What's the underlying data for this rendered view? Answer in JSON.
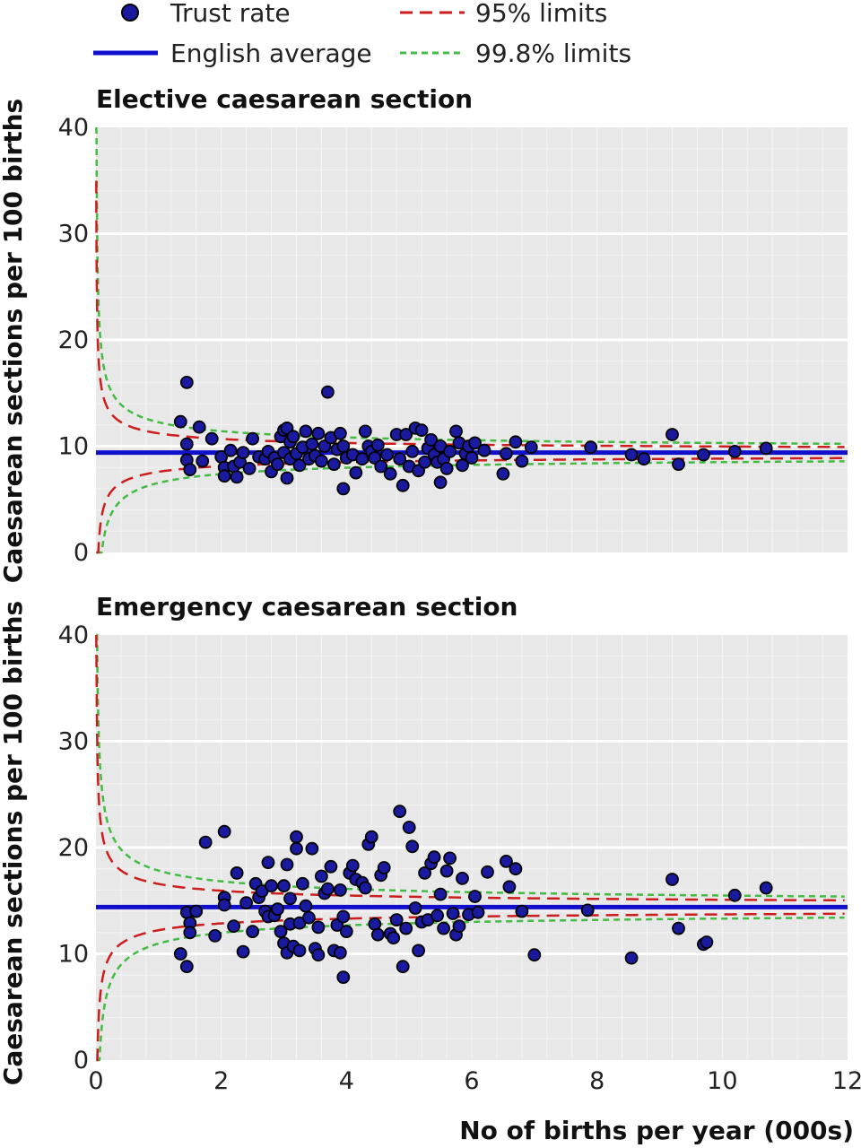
{
  "legend": {
    "trust_rate": "Trust rate",
    "english_average": "English average",
    "limits95": "95% limits",
    "limits998": "99.8% limits"
  },
  "colors": {
    "plot_background": "#e8e8e8",
    "point_fill": "#1a1aa0",
    "average_line": "#1010cc",
    "limits95": "#cc1e1e",
    "limits998": "#44bb44"
  },
  "axes": {
    "xlabel": "No of births per year (000s)",
    "ylabel": "Caesarean sections per 100 births",
    "x_ticks": [
      "0",
      "2",
      "4",
      "6",
      "8",
      "10",
      "12"
    ],
    "y_ticks": [
      "0",
      "10",
      "20",
      "30",
      "40"
    ]
  },
  "chart_data": [
    {
      "type": "scatter",
      "title": "Elective caesarean section",
      "xlabel": "No of births per year (000s)",
      "ylabel": "Caesarean sections per 100 births",
      "xlim": [
        0,
        12
      ],
      "ylim": [
        0,
        40
      ],
      "grid": true,
      "average": 9.4,
      "series": [
        {
          "name": "Trust rate",
          "points": [
            [
              1.45,
              16.0
            ],
            [
              1.35,
              12.3
            ],
            [
              1.65,
              11.8
            ],
            [
              1.45,
              10.2
            ],
            [
              1.45,
              8.7
            ],
            [
              1.5,
              7.8
            ],
            [
              1.7,
              8.6
            ],
            [
              1.85,
              10.7
            ],
            [
              2.0,
              9.0
            ],
            [
              2.05,
              8.0
            ],
            [
              2.05,
              7.2
            ],
            [
              2.15,
              9.6
            ],
            [
              2.2,
              8.1
            ],
            [
              2.25,
              7.1
            ],
            [
              2.3,
              8.5
            ],
            [
              2.35,
              9.4
            ],
            [
              2.45,
              7.9
            ],
            [
              2.5,
              10.7
            ],
            [
              2.6,
              9.0
            ],
            [
              2.7,
              8.8
            ],
            [
              2.75,
              9.5
            ],
            [
              2.8,
              7.6
            ],
            [
              2.85,
              8.9
            ],
            [
              2.9,
              8.3
            ],
            [
              2.95,
              10.9
            ],
            [
              3.0,
              9.4
            ],
            [
              3.0,
              11.5
            ],
            [
              3.05,
              11.7
            ],
            [
              3.05,
              7.0
            ],
            [
              3.1,
              8.8
            ],
            [
              3.1,
              10.4
            ],
            [
              3.15,
              10.9
            ],
            [
              3.2,
              9.3
            ],
            [
              3.25,
              8.2
            ],
            [
              3.3,
              9.9
            ],
            [
              3.35,
              11.4
            ],
            [
              3.4,
              8.8
            ],
            [
              3.45,
              10.2
            ],
            [
              3.5,
              9.1
            ],
            [
              3.55,
              11.2
            ],
            [
              3.6,
              8.6
            ],
            [
              3.65,
              10.0
            ],
            [
              3.7,
              15.1
            ],
            [
              3.75,
              10.8
            ],
            [
              3.8,
              8.3
            ],
            [
              3.85,
              9.7
            ],
            [
              3.9,
              11.2
            ],
            [
              3.95,
              6.0
            ],
            [
              3.95,
              10.0
            ],
            [
              4.0,
              8.9
            ],
            [
              4.1,
              9.2
            ],
            [
              4.15,
              7.5
            ],
            [
              4.25,
              8.8
            ],
            [
              4.3,
              11.4
            ],
            [
              4.35,
              10.0
            ],
            [
              4.4,
              9.5
            ],
            [
              4.45,
              8.9
            ],
            [
              4.5,
              10.1
            ],
            [
              4.55,
              8.1
            ],
            [
              4.65,
              9.2
            ],
            [
              4.7,
              7.4
            ],
            [
              4.8,
              11.1
            ],
            [
              4.85,
              8.8
            ],
            [
              4.9,
              6.3
            ],
            [
              4.95,
              11.1
            ],
            [
              5.0,
              8.1
            ],
            [
              5.05,
              9.5
            ],
            [
              5.1,
              11.7
            ],
            [
              5.15,
              7.7
            ],
            [
              5.2,
              11.5
            ],
            [
              5.25,
              8.5
            ],
            [
              5.3,
              9.8
            ],
            [
              5.35,
              10.6
            ],
            [
              5.4,
              9.2
            ],
            [
              5.45,
              8.5
            ],
            [
              5.5,
              10.0
            ],
            [
              5.5,
              6.6
            ],
            [
              5.55,
              8.8
            ],
            [
              5.6,
              7.9
            ],
            [
              5.65,
              9.5
            ],
            [
              5.75,
              11.4
            ],
            [
              5.8,
              10.3
            ],
            [
              5.85,
              8.2
            ],
            [
              5.9,
              9.3
            ],
            [
              5.95,
              10.0
            ],
            [
              6.0,
              8.9
            ],
            [
              6.05,
              10.3
            ],
            [
              6.2,
              9.6
            ],
            [
              6.5,
              7.4
            ],
            [
              6.55,
              9.3
            ],
            [
              6.7,
              10.4
            ],
            [
              6.8,
              8.6
            ],
            [
              6.95,
              9.9
            ],
            [
              7.9,
              9.9
            ],
            [
              8.55,
              9.2
            ],
            [
              8.75,
              8.8
            ],
            [
              9.2,
              11.1
            ],
            [
              9.3,
              8.3
            ],
            [
              9.7,
              9.2
            ],
            [
              10.2,
              9.5
            ],
            [
              10.7,
              9.8
            ]
          ]
        }
      ]
    },
    {
      "type": "scatter",
      "title": "Emergency caesarean section",
      "xlabel": "No of births per year (000s)",
      "ylabel": "Caesarean sections per 100 births",
      "xlim": [
        0,
        12
      ],
      "ylim": [
        0,
        40
      ],
      "grid": true,
      "average": 14.4,
      "series": [
        {
          "name": "Trust rate",
          "points": [
            [
              1.35,
              10.0
            ],
            [
              1.45,
              8.8
            ],
            [
              1.45,
              13.9
            ],
            [
              1.5,
              12.9
            ],
            [
              1.5,
              12.0
            ],
            [
              1.6,
              14.0
            ],
            [
              1.75,
              20.5
            ],
            [
              1.9,
              11.7
            ],
            [
              2.05,
              21.5
            ],
            [
              2.05,
              15.3
            ],
            [
              2.05,
              14.6
            ],
            [
              2.2,
              12.6
            ],
            [
              2.25,
              17.6
            ],
            [
              2.35,
              10.2
            ],
            [
              2.4,
              14.8
            ],
            [
              2.5,
              12.1
            ],
            [
              2.55,
              16.6
            ],
            [
              2.6,
              15.3
            ],
            [
              2.65,
              15.9
            ],
            [
              2.7,
              14.0
            ],
            [
              2.75,
              13.5
            ],
            [
              2.75,
              18.6
            ],
            [
              2.8,
              16.4
            ],
            [
              2.85,
              13.6
            ],
            [
              2.9,
              14.2
            ],
            [
              2.95,
              12.1
            ],
            [
              3.0,
              11.0
            ],
            [
              3.0,
              16.4
            ],
            [
              3.05,
              18.4
            ],
            [
              3.05,
              10.1
            ],
            [
              3.1,
              15.2
            ],
            [
              3.1,
              12.8
            ],
            [
              3.15,
              10.7
            ],
            [
              3.2,
              19.9
            ],
            [
              3.2,
              21.0
            ],
            [
              3.25,
              12.9
            ],
            [
              3.25,
              10.3
            ],
            [
              3.3,
              16.6
            ],
            [
              3.35,
              14.5
            ],
            [
              3.4,
              13.4
            ],
            [
              3.45,
              19.9
            ],
            [
              3.5,
              10.5
            ],
            [
              3.55,
              12.5
            ],
            [
              3.55,
              9.9
            ],
            [
              3.6,
              17.3
            ],
            [
              3.65,
              15.7
            ],
            [
              3.7,
              16.1
            ],
            [
              3.75,
              18.2
            ],
            [
              3.8,
              10.3
            ],
            [
              3.85,
              12.7
            ],
            [
              3.9,
              10.1
            ],
            [
              3.9,
              16.0
            ],
            [
              3.95,
              7.8
            ],
            [
              3.95,
              13.5
            ],
            [
              4.0,
              12.1
            ],
            [
              4.05,
              17.6
            ],
            [
              4.1,
              18.3
            ],
            [
              4.15,
              17.0
            ],
            [
              4.25,
              16.7
            ],
            [
              4.3,
              16.2
            ],
            [
              4.35,
              20.3
            ],
            [
              4.4,
              21.0
            ],
            [
              4.45,
              12.8
            ],
            [
              4.5,
              11.8
            ],
            [
              4.55,
              17.4
            ],
            [
              4.6,
              18.1
            ],
            [
              4.7,
              11.9
            ],
            [
              4.75,
              11.5
            ],
            [
              4.8,
              13.2
            ],
            [
              4.85,
              23.4
            ],
            [
              4.9,
              8.8
            ],
            [
              4.95,
              12.4
            ],
            [
              5.0,
              21.9
            ],
            [
              5.05,
              20.1
            ],
            [
              5.1,
              14.3
            ],
            [
              5.15,
              10.3
            ],
            [
              5.2,
              13.0
            ],
            [
              5.25,
              17.6
            ],
            [
              5.3,
              13.2
            ],
            [
              5.35,
              18.5
            ],
            [
              5.4,
              19.1
            ],
            [
              5.45,
              13.6
            ],
            [
              5.5,
              15.6
            ],
            [
              5.55,
              12.4
            ],
            [
              5.6,
              17.8
            ],
            [
              5.65,
              19.0
            ],
            [
              5.7,
              13.8
            ],
            [
              5.75,
              11.8
            ],
            [
              5.8,
              12.6
            ],
            [
              5.85,
              17.1
            ],
            [
              5.95,
              13.7
            ],
            [
              6.05,
              15.4
            ],
            [
              6.1,
              13.9
            ],
            [
              6.25,
              17.7
            ],
            [
              6.55,
              18.7
            ],
            [
              6.6,
              16.3
            ],
            [
              6.7,
              18.0
            ],
            [
              6.8,
              14.0
            ],
            [
              7.0,
              9.9
            ],
            [
              7.85,
              14.1
            ],
            [
              8.55,
              9.6
            ],
            [
              9.2,
              17.0
            ],
            [
              9.3,
              12.4
            ],
            [
              9.7,
              10.9
            ],
            [
              9.75,
              11.1
            ],
            [
              10.2,
              15.5
            ],
            [
              10.7,
              16.2
            ]
          ]
        }
      ]
    }
  ]
}
